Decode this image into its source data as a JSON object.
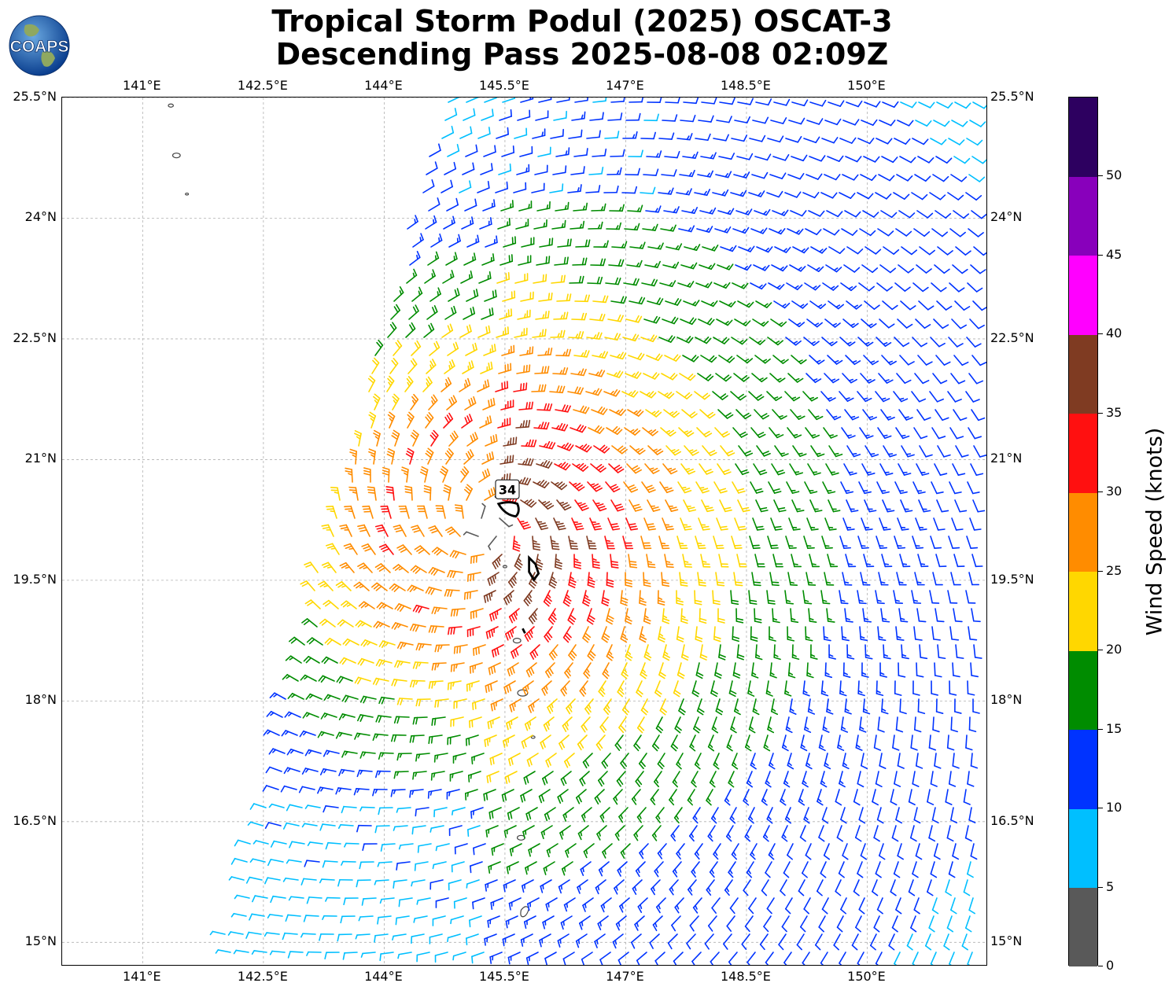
{
  "title": {
    "line1": "Tropical Storm Podul (2025) OSCAT-3",
    "line2": "Descending Pass 2025-08-08 02:09Z"
  },
  "logo": {
    "text": "COAPS"
  },
  "map": {
    "lon_range": [
      140.0,
      151.5
    ],
    "lat_range": [
      14.7,
      25.5
    ],
    "lon_ticks": [
      "141°E",
      "142.5°E",
      "144°E",
      "145.5°E",
      "147°E",
      "148.5°E",
      "150°E"
    ],
    "lon_tick_values": [
      141.0,
      142.5,
      144.0,
      145.5,
      147.0,
      148.5,
      150.0
    ],
    "lat_ticks": [
      "15°N",
      "16.5°N",
      "18°N",
      "19.5°N",
      "21°N",
      "22.5°N",
      "24°N",
      "25.5°N"
    ],
    "lat_tick_values": [
      15.0,
      16.5,
      18.0,
      19.5,
      21.0,
      22.5,
      24.0,
      25.5
    ],
    "storm_center": {
      "lon": 145.3,
      "lat": 20.2
    },
    "contour_label": "34",
    "grid": true
  },
  "colorbar": {
    "label": "Wind Speed (knots)",
    "ticks": [
      "0",
      "5",
      "10",
      "15",
      "20",
      "25",
      "30",
      "35",
      "40",
      "45",
      "50"
    ],
    "bounds": [
      0,
      5,
      10,
      15,
      20,
      25,
      30,
      35,
      40,
      45,
      50,
      55
    ],
    "colors": [
      "#595959",
      "#00bfff",
      "#0033ff",
      "#008c00",
      "#ffd700",
      "#ff8c00",
      "#ff1010",
      "#7f3b22",
      "#ff00ff",
      "#8800bb",
      "#2d0060"
    ]
  }
}
